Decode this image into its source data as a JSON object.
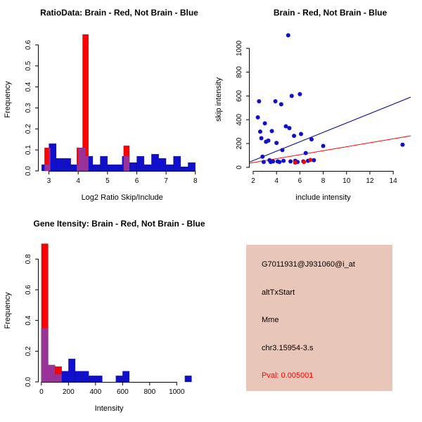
{
  "figure_bg": "#ffffff",
  "colors": {
    "red": "#ff0000",
    "blue": "#0f0fcd",
    "purple": "#993399",
    "line_blue": "#00008b",
    "line_red": "#ff0000",
    "axis": "#000000"
  },
  "chart_data": [
    {
      "type": "histogram",
      "title": "RatioData: Brain - Red, Not Brain - Blue",
      "xlabel": "Log2 Ratio Skip/Include",
      "ylabel": "Frequency",
      "xlim": [
        2.65,
        8.15
      ],
      "ylim": [
        0,
        0.68
      ],
      "xticks": [
        3,
        4,
        5,
        6,
        7,
        8
      ],
      "xtick_labels": [
        "3",
        "4",
        "5",
        "6",
        "7",
        "8"
      ],
      "yticks": [
        0,
        0.1,
        0.2,
        0.3,
        0.4,
        0.5,
        0.6
      ],
      "ytick_labels": [
        "0.0",
        "0.1",
        "0.2",
        "0.3",
        "0.4",
        "0.5",
        "0.6"
      ],
      "legend": [
        {
          "name": "Brain",
          "color": "red"
        },
        {
          "name": "Not Brain",
          "color": "blue"
        }
      ],
      "series": [
        {
          "name": "Not Brain",
          "color": "blue",
          "bars": [
            {
              "x": 2.75,
              "w": 0.25,
              "h": 0.03
            },
            {
              "x": 3.0,
              "w": 0.25,
              "h": 0.13
            },
            {
              "x": 3.25,
              "w": 0.25,
              "h": 0.06
            },
            {
              "x": 3.5,
              "w": 0.25,
              "h": 0.06
            },
            {
              "x": 3.75,
              "w": 0.25,
              "h": 0.03
            },
            {
              "x": 4.0,
              "w": 0.25,
              "h": 0.11
            },
            {
              "x": 4.25,
              "w": 0.25,
              "h": 0.07
            },
            {
              "x": 4.5,
              "w": 0.25,
              "h": 0.03
            },
            {
              "x": 4.75,
              "w": 0.25,
              "h": 0.07
            },
            {
              "x": 5.0,
              "w": 0.25,
              "h": 0.03
            },
            {
              "x": 5.25,
              "w": 0.25,
              "h": 0.03
            },
            {
              "x": 5.5,
              "w": 0.25,
              "h": 0.07
            },
            {
              "x": 5.75,
              "w": 0.25,
              "h": 0.04
            },
            {
              "x": 6.0,
              "w": 0.25,
              "h": 0.07
            },
            {
              "x": 6.25,
              "w": 0.25,
              "h": 0.03
            },
            {
              "x": 6.5,
              "w": 0.25,
              "h": 0.08
            },
            {
              "x": 6.75,
              "w": 0.25,
              "h": 0.06
            },
            {
              "x": 7.0,
              "w": 0.25,
              "h": 0.03
            },
            {
              "x": 7.25,
              "w": 0.25,
              "h": 0.07
            },
            {
              "x": 7.5,
              "w": 0.25,
              "h": 0.02
            },
            {
              "x": 7.75,
              "w": 0.25,
              "h": 0.04
            }
          ]
        },
        {
          "name": "Brain",
          "color": "red",
          "bars": [
            {
              "x": 2.85,
              "w": 0.2,
              "h": 0.11
            },
            {
              "x": 3.95,
              "w": 0.2,
              "h": 0.11
            },
            {
              "x": 4.15,
              "w": 0.2,
              "h": 0.65
            },
            {
              "x": 5.55,
              "w": 0.2,
              "h": 0.12
            }
          ]
        }
      ]
    },
    {
      "type": "scatter",
      "title": "Brain - Red, Not Brain - Blue",
      "xlabel": "include intensity",
      "ylabel": "skip intensity",
      "xlim": [
        1.7,
        15.5
      ],
      "ylim": [
        -30,
        1170
      ],
      "xticks": [
        2,
        4,
        6,
        8,
        10,
        12,
        14
      ],
      "xtick_labels": [
        "2",
        "4",
        "6",
        "8",
        "10",
        "12",
        "14"
      ],
      "yticks": [
        0,
        200,
        400,
        600,
        800,
        1000
      ],
      "ytick_labels": [
        "0",
        "200",
        "400",
        "600",
        "800",
        "1000"
      ],
      "lines": [
        {
          "x1": 1.7,
          "y1": 45,
          "x2": 15.5,
          "y2": 590,
          "color": "line_blue"
        },
        {
          "x1": 1.7,
          "y1": 35,
          "x2": 15.5,
          "y2": 265,
          "color": "line_red"
        }
      ],
      "points": [
        {
          "x": 2.4,
          "y": 420,
          "c": "blue"
        },
        {
          "x": 2.5,
          "y": 555,
          "c": "blue"
        },
        {
          "x": 2.6,
          "y": 300,
          "c": "blue"
        },
        {
          "x": 2.7,
          "y": 245,
          "c": "blue"
        },
        {
          "x": 2.8,
          "y": 90,
          "c": "blue"
        },
        {
          "x": 2.9,
          "y": 45,
          "c": "blue"
        },
        {
          "x": 3.0,
          "y": 370,
          "c": "blue"
        },
        {
          "x": 3.1,
          "y": 215,
          "c": "blue"
        },
        {
          "x": 3.3,
          "y": 225,
          "c": "blue"
        },
        {
          "x": 3.4,
          "y": 60,
          "c": "blue"
        },
        {
          "x": 3.5,
          "y": 45,
          "c": "blue"
        },
        {
          "x": 3.6,
          "y": 305,
          "c": "blue"
        },
        {
          "x": 3.7,
          "y": 50,
          "c": "blue"
        },
        {
          "x": 3.9,
          "y": 555,
          "c": "blue"
        },
        {
          "x": 4.0,
          "y": 205,
          "c": "blue"
        },
        {
          "x": 4.1,
          "y": 50,
          "c": "blue"
        },
        {
          "x": 4.25,
          "y": 45,
          "c": "blue"
        },
        {
          "x": 4.4,
          "y": 530,
          "c": "blue"
        },
        {
          "x": 4.5,
          "y": 145,
          "c": "blue"
        },
        {
          "x": 4.6,
          "y": 55,
          "c": "blue"
        },
        {
          "x": 4.8,
          "y": 345,
          "c": "blue"
        },
        {
          "x": 5.0,
          "y": 1110,
          "c": "blue"
        },
        {
          "x": 5.1,
          "y": 330,
          "c": "blue"
        },
        {
          "x": 5.2,
          "y": 50,
          "c": "blue"
        },
        {
          "x": 5.3,
          "y": 600,
          "c": "blue"
        },
        {
          "x": 5.5,
          "y": 265,
          "c": "blue"
        },
        {
          "x": 5.6,
          "y": 55,
          "c": "blue"
        },
        {
          "x": 5.8,
          "y": 45,
          "c": "blue"
        },
        {
          "x": 6.0,
          "y": 615,
          "c": "blue"
        },
        {
          "x": 6.1,
          "y": 280,
          "c": "blue"
        },
        {
          "x": 6.3,
          "y": 50,
          "c": "blue"
        },
        {
          "x": 6.5,
          "y": 120,
          "c": "blue"
        },
        {
          "x": 6.7,
          "y": 55,
          "c": "blue"
        },
        {
          "x": 7.0,
          "y": 235,
          "c": "blue"
        },
        {
          "x": 7.2,
          "y": 60,
          "c": "blue"
        },
        {
          "x": 8.0,
          "y": 180,
          "c": "blue"
        },
        {
          "x": 14.8,
          "y": 190,
          "c": "blue"
        },
        {
          "x": 5.6,
          "y": 40,
          "c": "red"
        },
        {
          "x": 6.35,
          "y": 45,
          "c": "red"
        },
        {
          "x": 6.9,
          "y": 62,
          "c": "red"
        }
      ]
    },
    {
      "type": "histogram",
      "title": "Gene Itensity: Brain - Red, Not Brain - Blue",
      "xlabel": "Intensity",
      "ylabel": "Frequency",
      "xlim": [
        -20,
        1170
      ],
      "ylim": [
        0,
        0.93
      ],
      "xticks": [
        0,
        200,
        400,
        600,
        800,
        1000
      ],
      "xtick_labels": [
        "0",
        "200",
        "400",
        "600",
        "800",
        "1000"
      ],
      "yticks": [
        0,
        0.2,
        0.4,
        0.6,
        0.8
      ],
      "ytick_labels": [
        "0.0",
        "0.2",
        "0.4",
        "0.6",
        "0.8"
      ],
      "legend": [
        {
          "name": "Brain",
          "color": "red"
        },
        {
          "name": "Not Brain",
          "color": "blue"
        }
      ],
      "series": [
        {
          "name": "Not Brain",
          "color": "blue",
          "bars": [
            {
              "x": 0,
              "w": 50,
              "h": 0.35
            },
            {
              "x": 50,
              "w": 50,
              "h": 0.11
            },
            {
              "x": 100,
              "w": 50,
              "h": 0.05
            },
            {
              "x": 150,
              "w": 50,
              "h": 0.07
            },
            {
              "x": 200,
              "w": 50,
              "h": 0.15
            },
            {
              "x": 250,
              "w": 50,
              "h": 0.07
            },
            {
              "x": 300,
              "w": 50,
              "h": 0.07
            },
            {
              "x": 350,
              "w": 50,
              "h": 0.04
            },
            {
              "x": 400,
              "w": 50,
              "h": 0.04
            },
            {
              "x": 550,
              "w": 50,
              "h": 0.04
            },
            {
              "x": 600,
              "w": 50,
              "h": 0.07
            },
            {
              "x": 1060,
              "w": 50,
              "h": 0.04
            }
          ]
        },
        {
          "name": "Brain",
          "color": "red",
          "bars": [
            {
              "x": 0,
              "w": 50,
              "h": 0.9
            },
            {
              "x": 50,
              "w": 50,
              "h": 0.11
            },
            {
              "x": 100,
              "w": 50,
              "h": 0.1
            }
          ]
        }
      ]
    }
  ],
  "info_box": {
    "bg": "#e9c7b8",
    "text_color": "#000000",
    "pval_color": "#ff0000",
    "probe_id": "G7011931@J931060@i_at",
    "event_type": "altTxStart",
    "gene_symbol": "Mme",
    "location": "chr3.15954-3.s",
    "pval": "Pval: 0.005001"
  }
}
